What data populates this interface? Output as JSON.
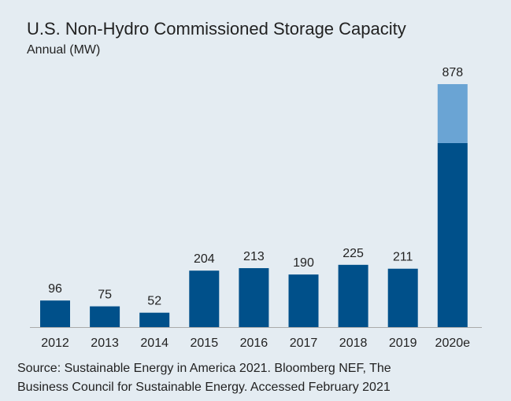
{
  "chart_data": {
    "type": "stacked_bar",
    "title": "U.S. Non-Hydro Commissioned Storage Capacity",
    "subtitle": "Annual (MW)",
    "categories": [
      "2012",
      "2013",
      "2014",
      "2015",
      "2016",
      "2017",
      "2018",
      "2019",
      "2020e"
    ],
    "series": [
      {
        "color": "#00508a",
        "values": [
          96,
          75,
          52,
          204,
          213,
          190,
          225,
          211,
          665
        ]
      },
      {
        "color": "#6aa4d4",
        "values": [
          null,
          null,
          null,
          null,
          null,
          null,
          null,
          null,
          213
        ]
      }
    ],
    "totals": [
      96,
      75,
      52,
      204,
      213,
      190,
      225,
      211,
      878
    ],
    "source": [
      "Source: Sustainable Energy in America 2021. Bloomberg NEF, The",
      "Business Council for Sustainable Energy. Accessed February 2021"
    ]
  }
}
